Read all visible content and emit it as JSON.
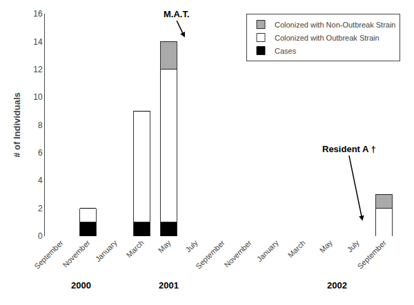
{
  "chart_data": {
    "type": "bar",
    "stacked": true,
    "categories": [
      "September",
      "November",
      "January",
      "March",
      "May",
      "July",
      "September",
      "November",
      "January",
      "March",
      "May",
      "July",
      "September"
    ],
    "series": [
      {
        "name": "Cases",
        "color": "#000000",
        "values": [
          0,
          1,
          0,
          1,
          1,
          0,
          0,
          0,
          0,
          0,
          0,
          0,
          0
        ]
      },
      {
        "name": "Colonized with Outbreak Strain",
        "color": "#ffffff",
        "values": [
          0,
          1,
          0,
          8,
          11,
          0,
          0,
          0,
          0,
          0,
          0,
          0,
          2
        ]
      },
      {
        "name": "Colonized with Non-Outbreak Strain",
        "color": "#aaaaaa",
        "values": [
          0,
          0,
          0,
          0,
          2,
          0,
          0,
          0,
          0,
          0,
          0,
          0,
          1
        ]
      }
    ],
    "ylabel": "# of Individuals",
    "ylim": [
      0,
      16
    ],
    "yticks": [
      0,
      2,
      4,
      6,
      8,
      10,
      12,
      14,
      16
    ],
    "grid": false,
    "legend": "upper right",
    "year_labels": [
      {
        "text": "2000",
        "x": 0.75
      },
      {
        "text": "2001",
        "x": 4.0
      },
      {
        "text": "2002",
        "x": 10.25
      }
    ],
    "annotations": [
      {
        "text": "M.A.T.",
        "x": 4.6,
        "y": 14.3,
        "text_y": 15.5
      },
      {
        "text": "Resident A †",
        "x": 11.2,
        "y": 1.1,
        "text_y": 5.8
      }
    ]
  }
}
